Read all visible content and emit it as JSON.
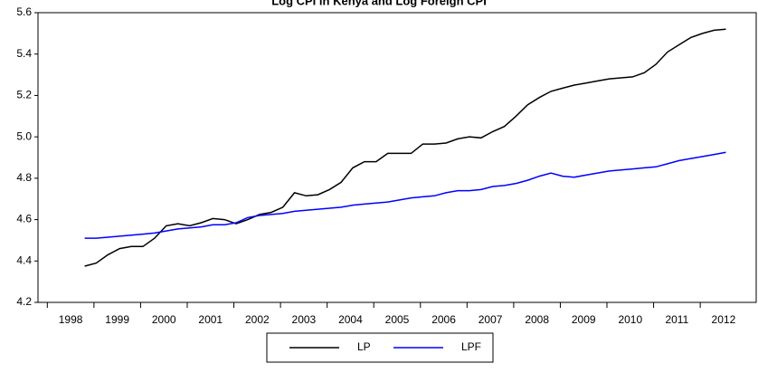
{
  "chart_data": {
    "type": "line",
    "title": "Log CPI in Kenya and Log Foreign CPI",
    "x": [
      1998.8,
      1999.05,
      1999.3,
      1999.55,
      1999.8,
      2000.05,
      2000.3,
      2000.55,
      2000.8,
      2001.05,
      2001.3,
      2001.55,
      2001.8,
      2002.05,
      2002.3,
      2002.55,
      2002.8,
      2003.05,
      2003.3,
      2003.55,
      2003.8,
      2004.05,
      2004.3,
      2004.55,
      2004.8,
      2005.05,
      2005.3,
      2005.55,
      2005.8,
      2006.05,
      2006.3,
      2006.55,
      2006.8,
      2007.05,
      2007.3,
      2007.55,
      2007.8,
      2008.05,
      2008.3,
      2008.55,
      2008.8,
      2009.05,
      2009.3,
      2009.55,
      2009.8,
      2010.05,
      2010.3,
      2010.55,
      2010.8,
      2011.05,
      2011.3,
      2011.55,
      2011.8,
      2012.05,
      2012.3,
      2012.55
    ],
    "series": [
      {
        "name": "LP",
        "color": "#000000",
        "values": [
          4.375,
          4.39,
          4.43,
          4.46,
          4.47,
          4.47,
          4.51,
          4.57,
          4.58,
          4.57,
          4.585,
          4.605,
          4.6,
          4.58,
          4.6,
          4.625,
          4.635,
          4.66,
          4.73,
          4.715,
          4.72,
          4.745,
          4.78,
          4.85,
          4.88,
          4.88,
          4.92,
          4.92,
          4.92,
          4.965,
          4.965,
          4.97,
          4.99,
          5.0,
          4.995,
          5.025,
          5.05,
          5.1,
          5.155,
          5.19,
          5.22,
          5.235,
          5.25,
          5.26,
          5.27,
          5.28,
          5.285,
          5.29,
          5.31,
          5.35,
          5.41,
          5.445,
          5.48,
          5.5,
          5.515,
          5.52
        ]
      },
      {
        "name": "LPF",
        "color": "#0000ff",
        "values": [
          4.51,
          4.51,
          4.515,
          4.52,
          4.525,
          4.53,
          4.535,
          4.545,
          4.555,
          4.56,
          4.565,
          4.575,
          4.575,
          4.585,
          4.61,
          4.62,
          4.625,
          4.63,
          4.64,
          4.645,
          4.65,
          4.655,
          4.66,
          4.67,
          4.675,
          4.68,
          4.685,
          4.695,
          4.705,
          4.71,
          4.715,
          4.73,
          4.74,
          4.74,
          4.745,
          4.76,
          4.765,
          4.775,
          4.79,
          4.81,
          4.825,
          4.81,
          4.805,
          4.815,
          4.825,
          4.835,
          4.84,
          4.845,
          4.85,
          4.855,
          4.87,
          4.885,
          4.895,
          4.905,
          4.915,
          4.925
        ]
      }
    ],
    "xlim": [
      1997.8,
      2013.2
    ],
    "xticks": [
      1998,
      1999,
      2000,
      2001,
      2002,
      2003,
      2004,
      2005,
      2006,
      2007,
      2008,
      2009,
      2010,
      2011,
      2012
    ],
    "ylim": [
      4.2,
      5.6
    ],
    "yticks": [
      4.2,
      4.4,
      4.6,
      4.8,
      {
        "value": 5,
        "label": "5.0"
      },
      5.2,
      5.4,
      5.6
    ],
    "grid": false,
    "legend": "bottom"
  }
}
